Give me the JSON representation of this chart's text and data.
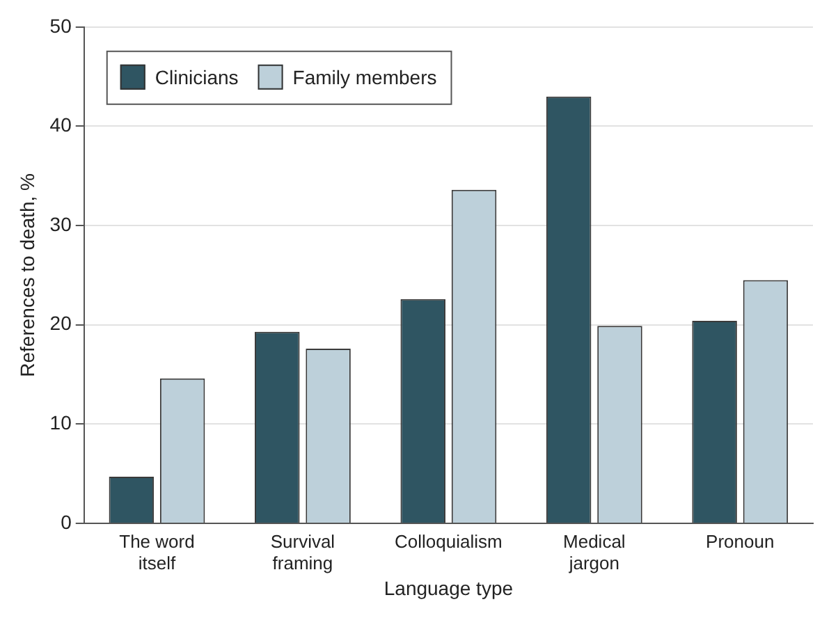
{
  "chart_data": {
    "type": "bar",
    "xlabel": "Language type",
    "ylabel": "References to death, %",
    "categories": [
      "The word itself",
      "Survival framing",
      "Colloquialism",
      "Medical jargon",
      "Pronoun"
    ],
    "series": [
      {
        "name": "Clinicians",
        "color": "#2f5562",
        "values": [
          4.7,
          19.3,
          22.6,
          43.0,
          20.4
        ]
      },
      {
        "name": "Family members",
        "color": "#bdd0da",
        "values": [
          14.6,
          17.6,
          33.6,
          19.9,
          24.5
        ]
      }
    ],
    "ylim": [
      0,
      50
    ],
    "yticks": [
      0,
      10,
      20,
      30,
      40,
      50
    ],
    "grid": "y",
    "legend": "top left"
  }
}
